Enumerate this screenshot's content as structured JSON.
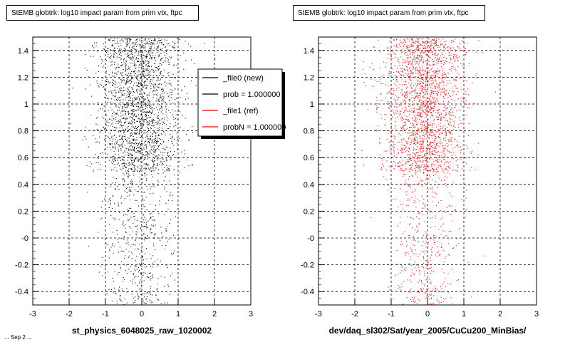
{
  "chart_data": [
    {
      "type": "scatter",
      "title": "StEMB globtrk: log10 impact param from prim vtx, ftpc",
      "xlabel": "st_physics_6048025_raw_1020002",
      "xlim": [
        -3,
        3
      ],
      "ylim": [
        -0.5,
        1.5
      ],
      "x_ticks": [
        "-3",
        "-2",
        "-1",
        "0",
        "1",
        "2",
        "3"
      ],
      "y_ticks": [
        "-0.4",
        "-0.2",
        "-0",
        "0.2",
        "0.4",
        "0.6",
        "0.8",
        "1",
        "1.2",
        "1.4"
      ],
      "grid": true,
      "series": [
        {
          "name": "_file0 (new)",
          "color": "#000000",
          "x_center": -0.1,
          "x_spread": 0.55,
          "y_range": [
            -0.5,
            1.5
          ],
          "dense_y_range": [
            0.5,
            1.5
          ]
        }
      ],
      "legend": {
        "placement": "top-right",
        "entries": [
          {
            "label": "_file0 (new)",
            "color": "#000000"
          },
          {
            "label": "prob = 1.000000",
            "color": "#000000"
          },
          {
            "label": "_file1 (ref)",
            "color": "#ff0000"
          },
          {
            "label": "probN = 1.000000",
            "color": "#ff0000"
          }
        ]
      }
    },
    {
      "type": "scatter",
      "title": "StEMB globtrk: log10 impact param from prim vtx, ftpc",
      "xlabel": "dev/daq_sl302/Sat/year_2005/CuCu200_MinBias/",
      "xlim": [
        -3,
        3
      ],
      "ylim": [
        -0.5,
        1.5
      ],
      "x_ticks": [
        "-3",
        "-2",
        "-1",
        "0",
        "1",
        "2",
        "3"
      ],
      "y_ticks": [
        "-0.4",
        "-0.2",
        "-0",
        "0.2",
        "0.4",
        "0.6",
        "0.8",
        "1",
        "1.2",
        "1.4"
      ],
      "grid": true,
      "series": [
        {
          "name": "_file1 (ref)",
          "color": "#ff0000",
          "x_center": -0.1,
          "x_spread": 0.55,
          "y_range": [
            -0.5,
            1.5
          ],
          "dense_y_range": [
            0.5,
            1.5
          ]
        }
      ]
    }
  ],
  "footer": "... Sep 2 ..."
}
